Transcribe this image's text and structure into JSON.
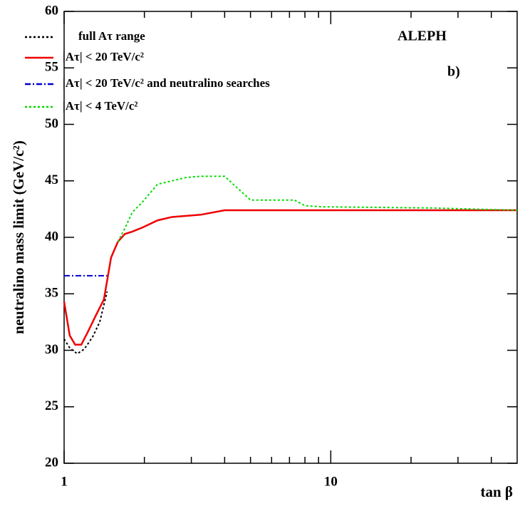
{
  "chart_data": {
    "type": "line",
    "ylabel": "neutralino mass limit (GeV/c²)",
    "xlabel": "tan β",
    "annotations": [
      "ALEPH",
      "b)"
    ],
    "xscale": "log",
    "xlim": [
      1,
      50
    ],
    "xticks": [
      1,
      10
    ],
    "xminorticks": [
      2,
      3,
      4,
      5,
      6,
      7,
      8,
      9,
      20,
      30,
      40
    ],
    "ylim": [
      20,
      60
    ],
    "yticks": [
      20,
      25,
      30,
      35,
      40,
      45,
      50,
      55,
      60
    ],
    "series": [
      {
        "name": "full Aτ range",
        "color": "#000000",
        "style": "dotted",
        "x": [
          1,
          1.05,
          1.12,
          1.19,
          1.28,
          1.36,
          1.45
        ],
        "values": [
          31.0,
          30.2,
          29.7,
          30.1,
          31.2,
          32.5,
          35.2
        ]
      },
      {
        "name": "|Aτ| < 20 TeV/c²",
        "color": "#ee0000",
        "style": "solid",
        "x": [
          1,
          1.05,
          1.1,
          1.16,
          1.22,
          1.31,
          1.41,
          1.5,
          1.59,
          1.69,
          1.8,
          1.98,
          2.24,
          2.54,
          3.25,
          4.0,
          50
        ],
        "values": [
          34.3,
          31.3,
          30.5,
          30.5,
          31.5,
          33.0,
          34.5,
          38.2,
          39.6,
          40.3,
          40.5,
          40.9,
          41.5,
          41.8,
          42.0,
          42.4,
          42.4
        ]
      },
      {
        "name": "|Aτ| < 20 TeV/c² and neutralino searches",
        "color": "#0000cc",
        "style": "dashdot",
        "x": [
          1,
          1.45
        ],
        "values": [
          36.6,
          36.6
        ]
      },
      {
        "name": "|Aτ| < 4 TeV/c²",
        "color": "#00dd00",
        "style": "dotted",
        "x": [
          1.59,
          1.69,
          1.8,
          1.98,
          2.24,
          2.54,
          2.87,
          3.25,
          4.0,
          5.0,
          7.3,
          8.0,
          9.3,
          23.7,
          50
        ],
        "values": [
          39.6,
          40.8,
          42.2,
          43.2,
          44.7,
          45.0,
          45.3,
          45.4,
          45.4,
          43.3,
          43.3,
          42.8,
          42.7,
          42.6,
          42.4
        ]
      }
    ]
  }
}
